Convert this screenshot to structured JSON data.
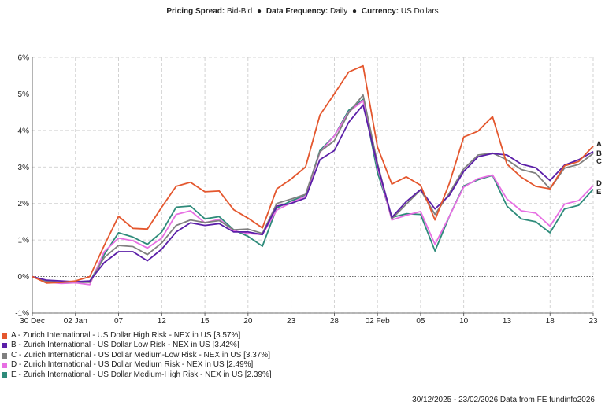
{
  "header": {
    "pricing_label": "Pricing Spread:",
    "pricing_value": "Bid-Bid",
    "frequency_label": "Data Frequency:",
    "frequency_value": "Daily",
    "currency_label": "Currency:",
    "currency_value": "US Dollars",
    "separator": "●"
  },
  "chart_data": {
    "type": "line",
    "title": "Pricing Spread: Bid-Bid ● Data Frequency: Daily ● Currency: US Dollars",
    "xlabel": "",
    "ylabel": "",
    "ylim": [
      -1,
      6
    ],
    "yticks": [
      -1,
      0,
      1,
      2,
      3,
      4,
      5,
      6
    ],
    "ytick_labels": [
      "-1%",
      "0%",
      "1%",
      "2%",
      "3%",
      "4%",
      "5%",
      "6%"
    ],
    "x": [
      "30 Dec",
      "31 Dec",
      "01 Jan",
      "02 Jan",
      "05 Jan",
      "06 Jan",
      "07 Jan",
      "08 Jan",
      "09 Jan",
      "12 Jan",
      "13 Jan",
      "14 Jan",
      "15 Jan",
      "16 Jan",
      "19 Jan",
      "20 Jan",
      "21 Jan",
      "22 Jan",
      "23 Jan",
      "26 Jan",
      "27 Jan",
      "28 Jan",
      "29 Jan",
      "30 Jan",
      "02 Feb",
      "03 Feb",
      "04 Feb",
      "05 Feb",
      "06 Feb",
      "09 Feb",
      "10 Feb",
      "11 Feb",
      "12 Feb",
      "13 Feb",
      "16 Feb",
      "17 Feb",
      "18 Feb",
      "19 Feb",
      "20 Feb",
      "23 Feb"
    ],
    "x_ticks": [
      {
        "label": "30 Dec",
        "index": 0
      },
      {
        "label": "02 Jan",
        "index": 3
      },
      {
        "label": "07",
        "index": 6
      },
      {
        "label": "12",
        "index": 9
      },
      {
        "label": "15",
        "index": 12
      },
      {
        "label": "20",
        "index": 15
      },
      {
        "label": "23",
        "index": 18
      },
      {
        "label": "28",
        "index": 21
      },
      {
        "label": "02 Feb",
        "index": 24
      },
      {
        "label": "05",
        "index": 27
      },
      {
        "label": "10",
        "index": 30
      },
      {
        "label": "13",
        "index": 33
      },
      {
        "label": "18",
        "index": 36
      },
      {
        "label": "23",
        "index": 39
      }
    ],
    "series": [
      {
        "letter": "A",
        "name": "A - Zurich International - US Dollar High Risk - NEX in US [3.57%]",
        "color": "#e4572e",
        "values": [
          0,
          -0.18,
          -0.16,
          -0.12,
          0.0,
          0.85,
          1.65,
          1.32,
          1.3,
          1.9,
          2.47,
          2.58,
          2.32,
          2.34,
          1.83,
          1.6,
          1.33,
          2.4,
          2.67,
          3.0,
          4.42,
          5.0,
          5.6,
          5.77,
          3.55,
          2.53,
          2.73,
          2.5,
          1.55,
          2.55,
          3.82,
          3.98,
          4.38,
          3.08,
          2.72,
          2.47,
          2.4,
          3.03,
          3.15,
          3.57
        ]
      },
      {
        "letter": "B",
        "name": "B - Zurich International - US Dollar Low Risk - NEX in US [3.42%]",
        "color": "#5b1fa8",
        "values": [
          0,
          -0.1,
          -0.12,
          -0.14,
          -0.12,
          0.38,
          0.68,
          0.68,
          0.43,
          0.75,
          1.22,
          1.47,
          1.4,
          1.45,
          1.22,
          1.22,
          1.15,
          1.93,
          2.0,
          2.15,
          3.2,
          3.45,
          4.22,
          4.7,
          3.05,
          1.62,
          2.05,
          2.38,
          1.85,
          2.22,
          2.88,
          3.28,
          3.37,
          3.33,
          3.08,
          2.98,
          2.63,
          3.05,
          3.2,
          3.42
        ]
      },
      {
        "letter": "C",
        "name": "C - Zurich International - US Dollar Medium-Low Risk - NEX in US [3.37%]",
        "color": "#808080",
        "values": [
          0,
          -0.13,
          -0.16,
          -0.14,
          -0.16,
          0.52,
          0.85,
          0.82,
          0.6,
          0.92,
          1.4,
          1.55,
          1.48,
          1.53,
          1.28,
          1.3,
          1.18,
          2.0,
          2.12,
          2.25,
          3.42,
          3.72,
          4.48,
          4.97,
          3.1,
          1.58,
          1.98,
          2.37,
          1.7,
          2.28,
          2.95,
          3.33,
          3.38,
          3.2,
          2.93,
          2.83,
          2.4,
          2.97,
          3.07,
          3.37
        ]
      },
      {
        "letter": "D",
        "name": "D - Zurich International - US Dollar Medium Risk - NEX in US [2.49%]",
        "color": "#e76fe3",
        "values": [
          0,
          -0.15,
          -0.19,
          -0.17,
          -0.22,
          0.68,
          1.05,
          0.98,
          0.78,
          1.05,
          1.7,
          1.8,
          1.47,
          1.57,
          1.25,
          1.18,
          1.15,
          1.82,
          2.02,
          2.2,
          3.4,
          3.85,
          4.5,
          4.82,
          3.0,
          1.55,
          1.68,
          1.78,
          0.88,
          1.65,
          2.45,
          2.68,
          2.78,
          2.12,
          1.8,
          1.74,
          1.38,
          1.98,
          2.08,
          2.49
        ]
      },
      {
        "letter": "E",
        "name": "E - Zurich International - US Dollar Medium-High Risk - NEX in US [2.39%]",
        "color": "#2e8b7a",
        "values": [
          0,
          -0.15,
          -0.18,
          -0.17,
          -0.15,
          0.6,
          1.2,
          1.08,
          0.88,
          1.22,
          1.9,
          1.93,
          1.58,
          1.64,
          1.28,
          1.1,
          0.83,
          1.88,
          2.07,
          2.22,
          3.45,
          3.85,
          4.55,
          4.85,
          2.85,
          1.62,
          1.72,
          1.7,
          0.7,
          1.65,
          2.48,
          2.65,
          2.77,
          1.93,
          1.58,
          1.5,
          1.2,
          1.85,
          1.95,
          2.39
        ]
      }
    ],
    "end_labels": [
      "A",
      "B",
      "C",
      "D",
      "E"
    ],
    "grid": true,
    "zero_line": true
  },
  "legend": {
    "items": [
      {
        "text": "A - Zurich International - US Dollar High Risk - NEX in US [3.57%]",
        "color": "#e4572e"
      },
      {
        "text": "B - Zurich International - US Dollar Low Risk - NEX in US [3.42%]",
        "color": "#5b1fa8"
      },
      {
        "text": "C - Zurich International - US Dollar Medium-Low Risk - NEX in US [3.37%]",
        "color": "#808080"
      },
      {
        "text": "D - Zurich International - US Dollar Medium Risk - NEX in US [2.49%]",
        "color": "#e76fe3"
      },
      {
        "text": "E - Zurich International - US Dollar Medium-High Risk - NEX in US [2.39%]",
        "color": "#2e8b7a"
      }
    ]
  },
  "footer": {
    "text": "30/12/2025 - 23/02/2026 Data from FE fundinfo2026"
  }
}
